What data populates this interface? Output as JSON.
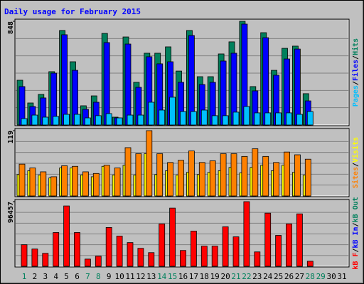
{
  "chart_data": [
    {
      "type": "bar",
      "title": "Daily usage for February 2015",
      "legend_separator": "/",
      "ylim": [
        0,
        848
      ],
      "yticks": [
        848
      ],
      "series": [
        {
          "name": "Pages",
          "color": "#00c0ff",
          "values": [
            52,
            81,
            64,
            70,
            87,
            87,
            58,
            76,
            93,
            58,
            81,
            81,
            186,
            122,
            227,
            110,
            110,
            122,
            76,
            76,
            105,
            151,
            99,
            99,
            99,
            99,
            87,
            110,
            null,
            null,
            null
          ]
        },
        {
          "name": "Files",
          "color": "#0000ff",
          "values": [
            314,
            151,
            221,
            424,
            738,
            447,
            128,
            186,
            674,
            58,
            662,
            308,
            558,
            500,
            517,
            349,
            732,
            331,
            349,
            523,
            587,
            825,
            279,
            714,
            407,
            540,
            621,
            197,
            null,
            null,
            null
          ]
        },
        {
          "name": "Hits",
          "color": "#00805c",
          "values": [
            366,
            180,
            250,
            436,
            773,
            517,
            157,
            238,
            749,
            64,
            720,
            349,
            587,
            587,
            639,
            441,
            773,
            395,
            395,
            581,
            680,
            848,
            314,
            755,
            447,
            627,
            645,
            256,
            null,
            null,
            null
          ]
        }
      ]
    },
    {
      "type": "bar",
      "ylim": [
        0,
        119
      ],
      "yticks": [
        119
      ],
      "series": [
        {
          "name": "Sites",
          "color": "#ff8000",
          "values": [
            58,
            51,
            44,
            35,
            55,
            54,
            44,
            41,
            56,
            51,
            88,
            77,
            119,
            77,
            61,
            65,
            82,
            61,
            64,
            77,
            77,
            72,
            86,
            72,
            61,
            80,
            75,
            67,
            null,
            null,
            null
          ]
        },
        {
          "name": "Visits",
          "color": "#ffff00",
          "values": [
            39,
            46,
            38,
            33,
            51,
            51,
            38,
            35,
            54,
            38,
            56,
            38,
            77,
            39,
            46,
            38,
            43,
            39,
            43,
            46,
            52,
            42,
            52,
            56,
            46,
            56,
            43,
            38,
            null,
            null,
            null
          ]
        }
      ]
    },
    {
      "type": "bar",
      "ylim": [
        0,
        96457
      ],
      "yticks": [
        96457
      ],
      "categories": [
        "1",
        "2",
        "3",
        "4",
        "5",
        "6",
        "7",
        "8",
        "9",
        "10",
        "11",
        "12",
        "13",
        "14",
        "15",
        "16",
        "17",
        "18",
        "19",
        "20",
        "21",
        "22",
        "23",
        "24",
        "25",
        "26",
        "27",
        "28",
        "29",
        "30",
        "31"
      ],
      "category_colors": [
        "#00805c",
        "#000000",
        "#000000",
        "#000000",
        "#000000",
        "#000000",
        "#00805c",
        "#00805c",
        "#000000",
        "#000000",
        "#000000",
        "#000000",
        "#000000",
        "#00805c",
        "#00805c",
        "#000000",
        "#000000",
        "#000000",
        "#000000",
        "#000000",
        "#00805c",
        "#00805c",
        "#000000",
        "#000000",
        "#000000",
        "#000000",
        "#000000",
        "#00805c",
        "#00805c",
        "#000000",
        "#000000"
      ],
      "series": [
        {
          "name": "kB F",
          "color": "#ff0000",
          "values": [
            32152,
            25722,
            19291,
            50372,
            90027,
            50372,
            10717,
            15004,
            57874,
            45013,
            35368,
            26794,
            20363,
            63233,
            86811,
            23579,
            52515,
            30009,
            30009,
            58946,
            43941,
            96457,
            21435,
            79309,
            46085,
            63233,
            78237,
            7502,
            null,
            null,
            null
          ]
        },
        {
          "name": "kB In",
          "color": "#0000ff",
          "values": [
            null,
            null,
            null,
            null,
            null,
            null,
            null,
            null,
            null,
            null,
            null,
            null,
            null,
            null,
            null,
            null,
            null,
            null,
            null,
            null,
            null,
            null,
            null,
            null,
            null,
            null,
            null,
            null,
            null,
            null,
            null
          ]
        },
        {
          "name": "kB Out",
          "color": "#00805c",
          "values": [
            null,
            null,
            null,
            null,
            null,
            null,
            null,
            null,
            null,
            null,
            null,
            null,
            null,
            null,
            null,
            null,
            null,
            null,
            null,
            null,
            null,
            null,
            null,
            null,
            null,
            null,
            null,
            null,
            null,
            null,
            null
          ]
        }
      ]
    }
  ]
}
